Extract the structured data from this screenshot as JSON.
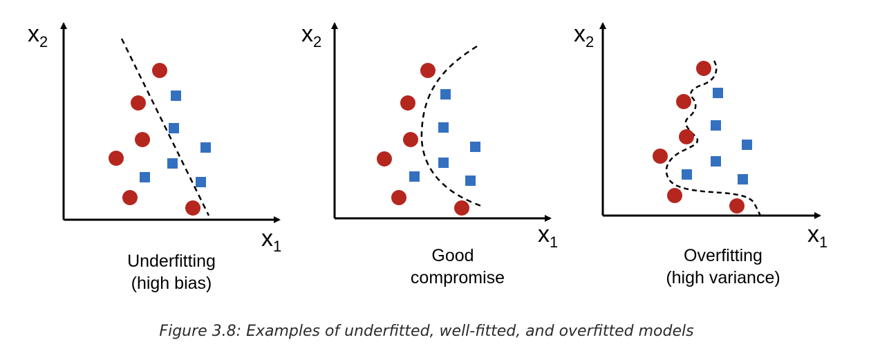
{
  "panels": [
    {
      "id": "underfitting",
      "x_axis_label": "x",
      "x_axis_subscript": "1",
      "y_axis_label": "x",
      "y_axis_subscript": "2",
      "caption_line1": "Underfitting",
      "caption_line2": "(high bias)"
    },
    {
      "id": "good",
      "x_axis_label": "x",
      "x_axis_subscript": "1",
      "y_axis_label": "x",
      "y_axis_subscript": "2",
      "caption_line1": "Good",
      "caption_line2": "compromise"
    },
    {
      "id": "overfitting",
      "x_axis_label": "x",
      "x_axis_subscript": "1",
      "y_axis_label": "x",
      "y_axis_subscript": "2",
      "caption_line1": "Overfitting",
      "caption_line2": "(high variance)"
    }
  ],
  "figure_caption": "Figure 3.8: Examples of underfitted, well-fitted, and overfitted models",
  "colors": {
    "circle_class": "#b5261e",
    "square_class": "#3470c0",
    "axis": "#000000",
    "boundary": "#000000"
  }
}
